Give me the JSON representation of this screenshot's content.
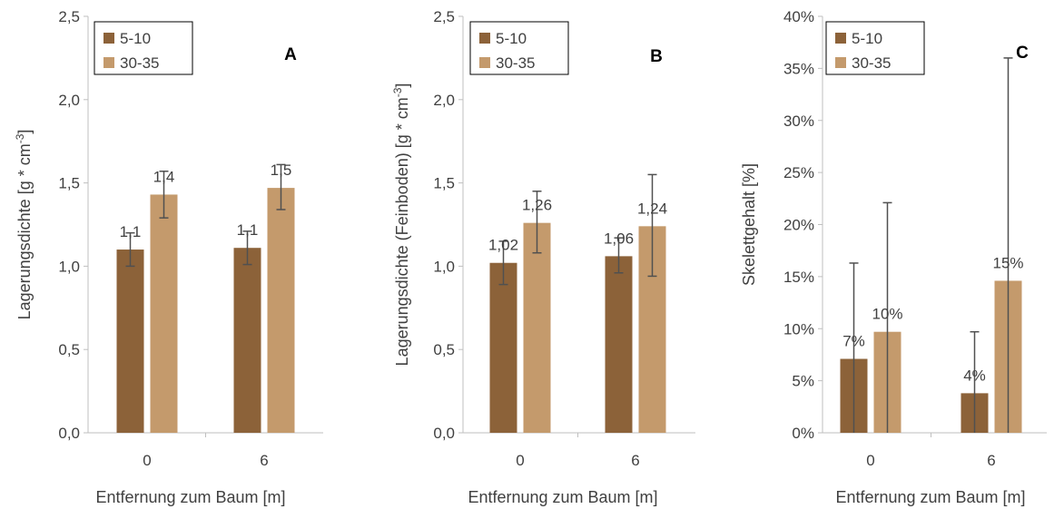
{
  "chart_data": [
    {
      "type": "bar",
      "panel_label": "A",
      "xlabel": "Entfernung zum Baum [m]",
      "ylabel": "Lagerungsdichte [g * cm-3]",
      "ylabel_main": "Lagerungsdichte [g * cm",
      "ylabel_sup": "-3",
      "ylabel_end": "]",
      "ylim": [
        0,
        2.5
      ],
      "yticks": [
        "0,0",
        "0,5",
        "1,0",
        "1,5",
        "2,0",
        "2,5"
      ],
      "yticks_values": [
        0,
        0.5,
        1.0,
        1.5,
        2.0,
        2.5
      ],
      "categories": [
        "0",
        "6"
      ],
      "legend_position": "top-left",
      "grid": false,
      "series": [
        {
          "name": "5-10",
          "color": "#8c6239",
          "values": [
            1.1,
            1.11
          ],
          "err_low": [
            1.0,
            1.01
          ],
          "err_high": [
            1.2,
            1.21
          ],
          "labels": [
            "1,1",
            "1,1"
          ]
        },
        {
          "name": "30-35",
          "color": "#c49a6c",
          "values": [
            1.43,
            1.47
          ],
          "err_low": [
            1.29,
            1.34
          ],
          "err_high": [
            1.57,
            1.61
          ],
          "labels": [
            "1,4",
            "1,5"
          ]
        }
      ]
    },
    {
      "type": "bar",
      "panel_label": "B",
      "xlabel": "Entfernung zum Baum [m]",
      "ylabel": "Lagerungsdichte (Feinboden) [g * cm-3]",
      "ylabel_main": "Lagerungsdichte (Feinboden) [g * cm",
      "ylabel_sup": "-3",
      "ylabel_end": "]",
      "ylim": [
        0,
        2.5
      ],
      "yticks": [
        "0,0",
        "0,5",
        "1,0",
        "1,5",
        "2,0",
        "2,5"
      ],
      "yticks_values": [
        0,
        0.5,
        1.0,
        1.5,
        2.0,
        2.5
      ],
      "categories": [
        "0",
        "6"
      ],
      "legend_position": "top-left",
      "grid": false,
      "series": [
        {
          "name": "5-10",
          "color": "#8c6239",
          "values": [
            1.02,
            1.06
          ],
          "err_low": [
            0.89,
            0.96
          ],
          "err_high": [
            1.15,
            1.17
          ],
          "labels": [
            "1,02",
            "1,06"
          ]
        },
        {
          "name": "30-35",
          "color": "#c49a6c",
          "values": [
            1.26,
            1.24
          ],
          "err_low": [
            1.08,
            0.94
          ],
          "err_high": [
            1.45,
            1.55
          ],
          "labels": [
            "1,26",
            "1,24"
          ]
        }
      ]
    },
    {
      "type": "bar",
      "panel_label": "C",
      "xlabel": "Entfernung zum Baum [m]",
      "ylabel": "Skelettgehalt [%]",
      "ylabel_main": "Skelettgehalt [%]",
      "ylabel_sup": "",
      "ylabel_end": "",
      "ylim": [
        0,
        0.4
      ],
      "yticks": [
        "0%",
        "5%",
        "10%",
        "15%",
        "20%",
        "25%",
        "30%",
        "35%",
        "40%"
      ],
      "yticks_values": [
        0,
        0.05,
        0.1,
        0.15,
        0.2,
        0.25,
        0.3,
        0.35,
        0.4
      ],
      "categories": [
        "0",
        "6"
      ],
      "legend_position": "top-left",
      "grid": false,
      "series": [
        {
          "name": "5-10",
          "color": "#8c6239",
          "values": [
            0.071,
            0.038
          ],
          "err_low": [
            0.0,
            0.0
          ],
          "err_high": [
            0.163,
            0.097
          ],
          "labels": [
            "7%",
            "4%"
          ]
        },
        {
          "name": "30-35",
          "color": "#c49a6c",
          "values": [
            0.097,
            0.146
          ],
          "err_low": [
            0.0,
            0.0
          ],
          "err_high": [
            0.221,
            0.36
          ],
          "labels": [
            "10%",
            "15%"
          ]
        }
      ]
    }
  ]
}
